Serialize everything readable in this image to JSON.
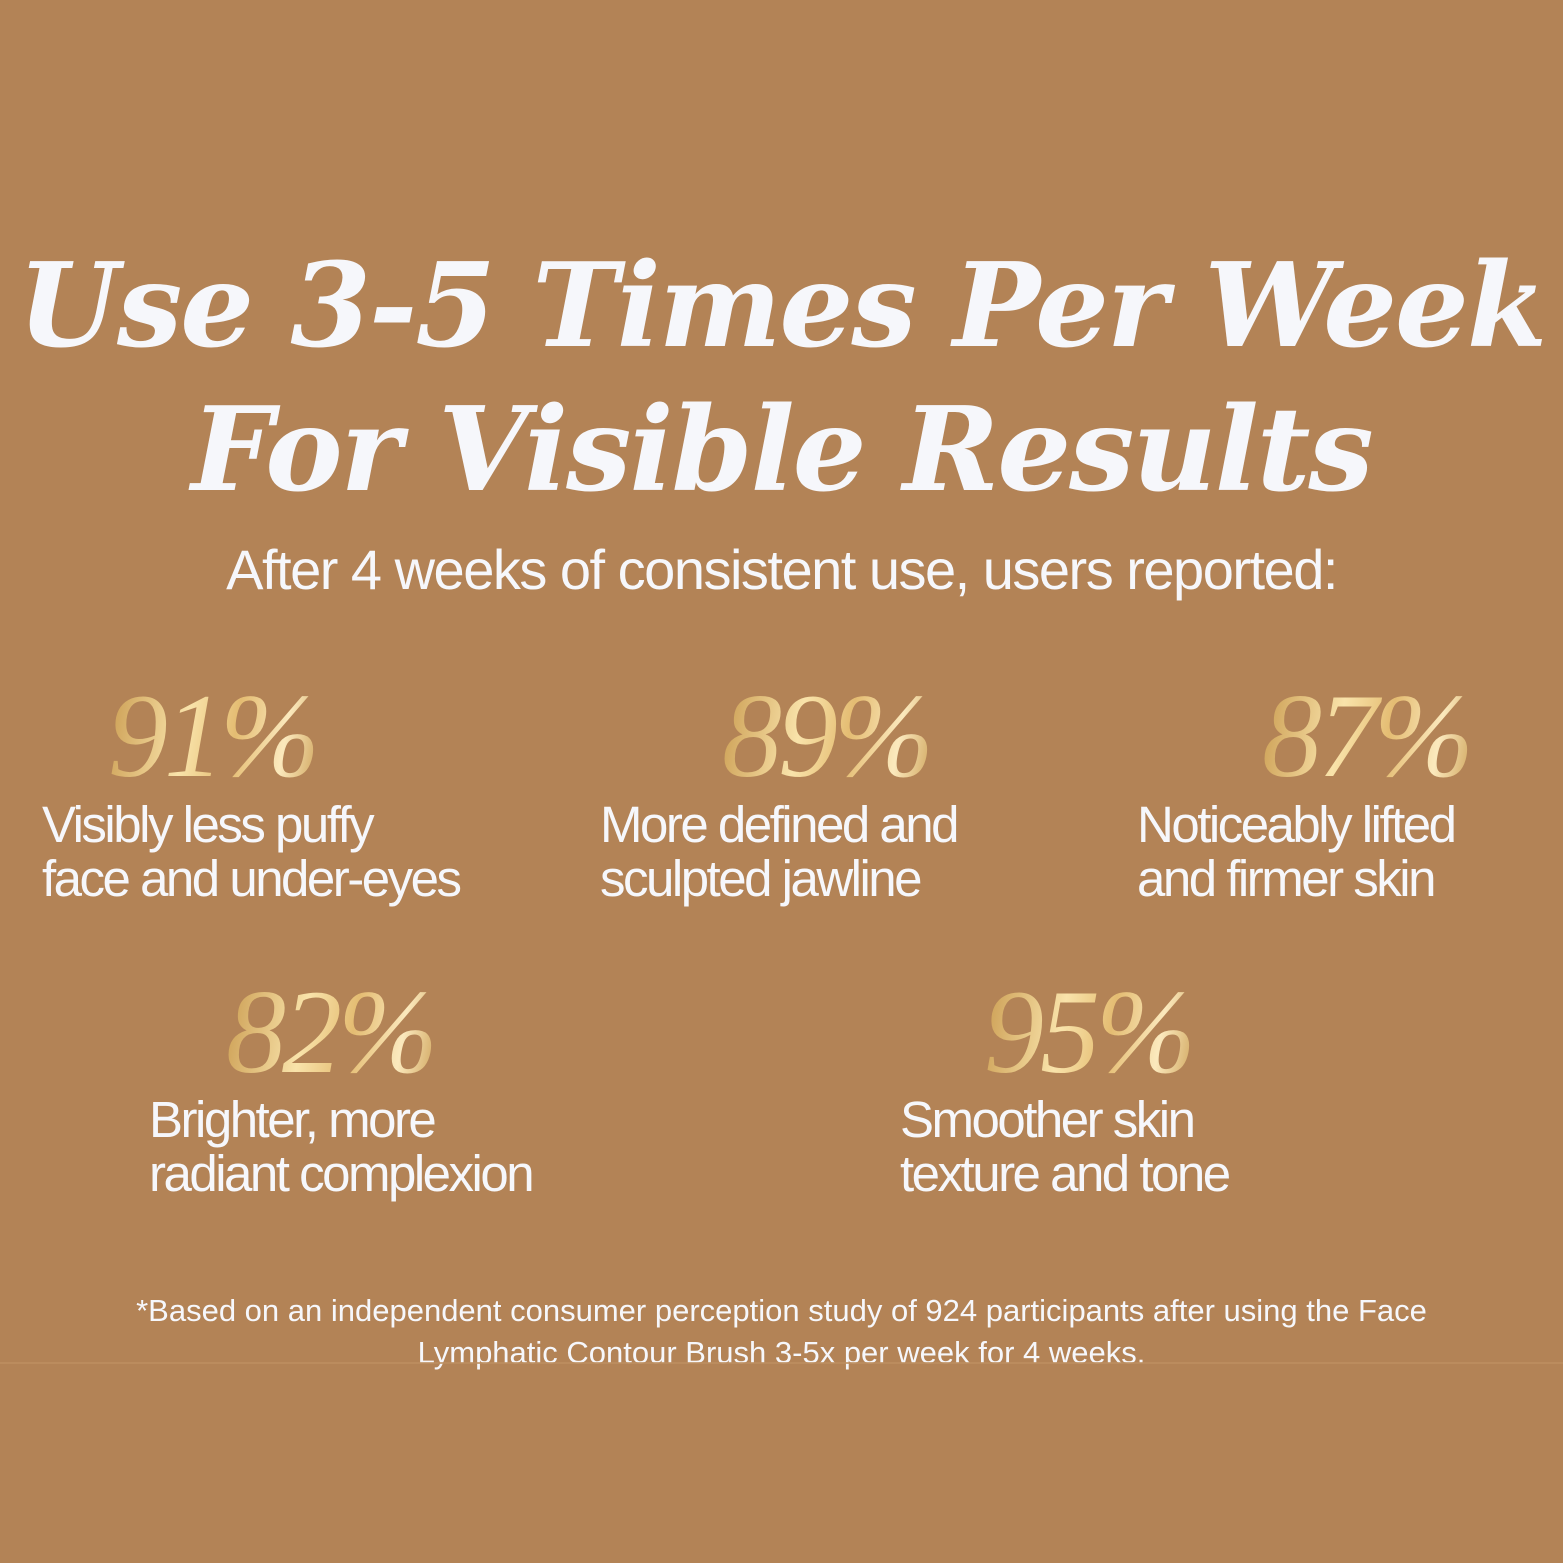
{
  "headline": {
    "line1": "Use 3-5 Times Per Week",
    "line2": "For Visible Results"
  },
  "subhead": "After 4 weeks of consistent use, users reported:",
  "stats": [
    {
      "percent": "91%",
      "line1": "Visibly less puffy",
      "line2": "face and under-eyes"
    },
    {
      "percent": "89%",
      "line1": "More defined and",
      "line2": "sculpted jawline"
    },
    {
      "percent": "87%",
      "line1": "Noticeably lifted",
      "line2": "and firmer skin"
    },
    {
      "percent": "82%",
      "line1": "Brighter, more",
      "line2": "radiant complexion"
    },
    {
      "percent": "95%",
      "line1": "Smoother skin",
      "line2": "texture and tone"
    }
  ],
  "footnote": {
    "line1": "*Based on an independent consumer perception study of 924 participants after using the Face",
    "line2": "Lymphatic Contour Brush 3-5x per week for 4 weeks."
  },
  "colors": {
    "background": "#b38356",
    "text": "#f6f7fb",
    "gold_light": "#f9e3aa",
    "gold_dark": "#c99a4e"
  }
}
